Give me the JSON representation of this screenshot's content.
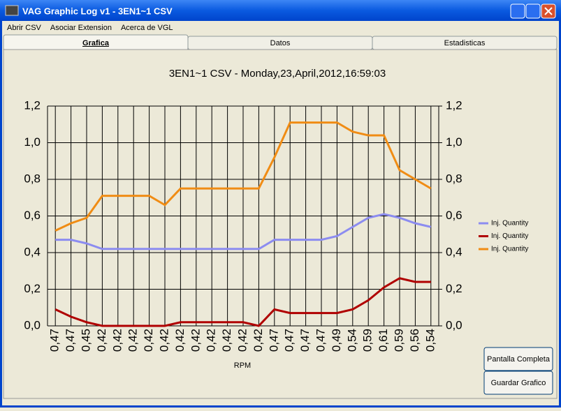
{
  "window": {
    "title": "VAG Graphic Log  v1 -  3EN1~1 CSV"
  },
  "menu": [
    "Abrir CSV",
    "Asociar Extension",
    "Acerca de VGL"
  ],
  "tabs": [
    "Grafica",
    "Datos",
    "Estadisticas"
  ],
  "buttons": [
    "Pantalla Completa",
    "Guardar Grafico"
  ],
  "chart_data": {
    "type": "line",
    "title": "3EN1~1 CSV - Monday,23,April,2012,16:59:03",
    "x_label": "RPM",
    "categories": [
      "0,47",
      "0,47",
      "0,45",
      "0,42",
      "0,42",
      "0,42",
      "0,42",
      "0,42",
      "0,42",
      "0,42",
      "0,42",
      "0,42",
      "0,42",
      "0,42",
      "0,47",
      "0,47",
      "0,47",
      "0,47",
      "0,49",
      "0,54",
      "0,59",
      "0,61",
      "0,59",
      "0,56",
      "0,54"
    ],
    "series": [
      {
        "name": "Inj. Quantity",
        "color": "#8c8cf0",
        "values": [
          0.47,
          0.47,
          0.45,
          0.42,
          0.42,
          0.42,
          0.42,
          0.42,
          0.42,
          0.42,
          0.42,
          0.42,
          0.42,
          0.42,
          0.47,
          0.47,
          0.47,
          0.47,
          0.49,
          0.54,
          0.59,
          0.61,
          0.59,
          0.56,
          0.54
        ]
      },
      {
        "name": "Inj. Quantity",
        "color": "#b00000",
        "values": [
          0.09,
          0.05,
          0.02,
          0.0,
          0.0,
          0.0,
          0.0,
          0.0,
          0.02,
          0.02,
          0.02,
          0.02,
          0.02,
          0.0,
          0.09,
          0.07,
          0.07,
          0.07,
          0.07,
          0.09,
          0.14,
          0.21,
          0.26,
          0.24,
          0.24
        ]
      },
      {
        "name": "Inj. Quantity",
        "color": "#f08c14",
        "values": [
          0.52,
          0.56,
          0.59,
          0.71,
          0.71,
          0.71,
          0.71,
          0.66,
          0.75,
          0.75,
          0.75,
          0.75,
          0.75,
          0.75,
          0.92,
          1.11,
          1.11,
          1.11,
          1.11,
          1.06,
          1.04,
          1.04,
          0.85,
          0.8,
          0.75
        ]
      }
    ],
    "ylim": [
      0,
      1.2
    ],
    "yticks": [
      {
        "value": 0,
        "label": "0,0"
      },
      {
        "value": 0.2,
        "label": "0,2"
      },
      {
        "value": 0.4,
        "label": "0,4"
      },
      {
        "value": 0.6,
        "label": "0,6"
      },
      {
        "value": 0.8,
        "label": "0,8"
      },
      {
        "value": 1.0,
        "label": "1,0"
      },
      {
        "value": 1.2,
        "label": "1,2"
      }
    ],
    "y2lim": [
      0,
      1.2
    ],
    "y2ticks": [
      {
        "value": 0,
        "label": "0,0"
      },
      {
        "value": 0.2,
        "label": "0,2"
      },
      {
        "value": 0.4,
        "label": "0,4"
      },
      {
        "value": 0.6,
        "label": "0,6"
      },
      {
        "value": 0.8,
        "label": "0,8"
      },
      {
        "value": 1.0,
        "label": "1,0"
      },
      {
        "value": 1.2,
        "label": "1,2"
      }
    ],
    "grid": true,
    "legend": "right"
  }
}
